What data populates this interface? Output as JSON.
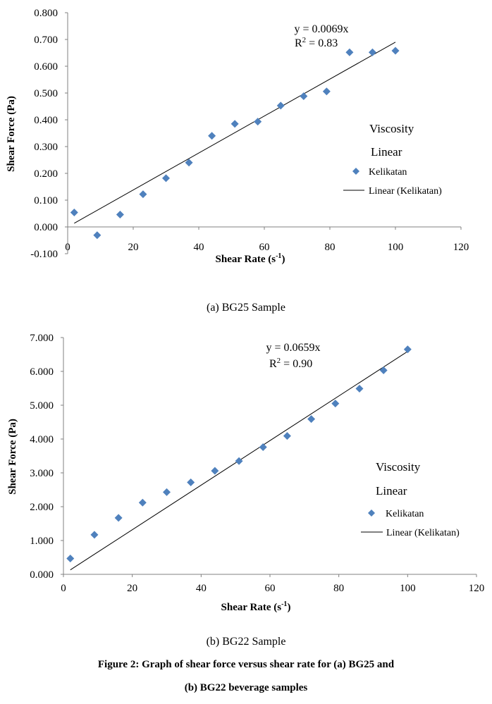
{
  "chart_data": [
    {
      "type": "scatter",
      "xlabel": "Shear Rate (s-1)",
      "xlabel_base": "Shear Rate (s",
      "xlabel_sup": "-1",
      "xlabel_close": ")",
      "ylabel": "Shear Force (Pa)",
      "xlim": [
        0,
        120
      ],
      "ylim": [
        -0.1,
        0.8
      ],
      "x_ticks": [
        "0",
        "20",
        "40",
        "60",
        "80",
        "100",
        "120"
      ],
      "y_ticks": [
        "0.800",
        "0.700",
        "0.600",
        "0.500",
        "0.400",
        "0.300",
        "0.200",
        "0.100",
        "0.000",
        "-0.100"
      ],
      "grid": false,
      "marker_color": "#4f81bd",
      "line_color": "#000000",
      "series": [
        {
          "name": "Kelikatan",
          "x": [
            2,
            9,
            16,
            23,
            30,
            37,
            44,
            51,
            58,
            65,
            72,
            79,
            86,
            93,
            100
          ],
          "y": [
            0.054,
            -0.031,
            0.046,
            0.122,
            0.182,
            0.24,
            0.34,
            0.385,
            0.393,
            0.453,
            0.488,
            0.506,
            0.652,
            0.652,
            0.658
          ]
        }
      ],
      "trendline": {
        "name": "Linear (Kelikatan)",
        "slope": 0.0069,
        "x_start": 2,
        "x_end": 100
      },
      "equation": "y = 0.0069x",
      "r2_prefix": "R",
      "r2_sup": "2",
      "r2_value": " = 0.83",
      "legend_title_1": "Viscosity",
      "legend_title_2": "Linear",
      "legend_marker_label": "Kelikatan",
      "legend_line_label": "Linear (Kelikatan)",
      "legend_position": "right"
    },
    {
      "type": "scatter",
      "xlabel": "Shear Rate (s-1)",
      "xlabel_base": "Shear Rate (s",
      "xlabel_sup": "-1",
      "xlabel_close": ")",
      "ylabel": "Shear Force (Pa)",
      "xlim": [
        0,
        120
      ],
      "ylim": [
        0,
        7
      ],
      "x_ticks": [
        "0",
        "20",
        "40",
        "60",
        "80",
        "100",
        "120"
      ],
      "y_ticks": [
        "7.000",
        "6.000",
        "5.000",
        "4.000",
        "3.000",
        "2.000",
        "1.000",
        "0.000"
      ],
      "grid": false,
      "marker_color": "#4f81bd",
      "line_color": "#000000",
      "series": [
        {
          "name": "Kelikatan",
          "x": [
            2,
            9,
            16,
            23,
            30,
            37,
            44,
            51,
            58,
            65,
            72,
            79,
            86,
            93,
            100
          ],
          "y": [
            0.47,
            1.17,
            1.67,
            2.12,
            2.43,
            2.72,
            3.06,
            3.35,
            3.76,
            4.09,
            4.59,
            5.05,
            5.49,
            6.03,
            6.65
          ]
        }
      ],
      "trendline": {
        "name": "Linear (Kelikatan)",
        "slope": 0.0659,
        "x_start": 2,
        "x_end": 100
      },
      "equation": "y = 0.0659x",
      "r2_prefix": "R",
      "r2_sup": "2",
      "r2_value": " =  0.90",
      "legend_title_1": "Viscosity",
      "legend_title_2": "Linear",
      "legend_marker_label": "Kelikatan",
      "legend_line_label": "Linear (Kelikatan)",
      "legend_position": "right"
    }
  ],
  "captions": {
    "a": "(a) BG25 Sample",
    "b": "(b) BG22 Sample",
    "figure_line1": "Figure 2: Graph of shear force versus shear rate for (a) BG25 and",
    "figure_line2": "(b) BG22 beverage samples"
  }
}
